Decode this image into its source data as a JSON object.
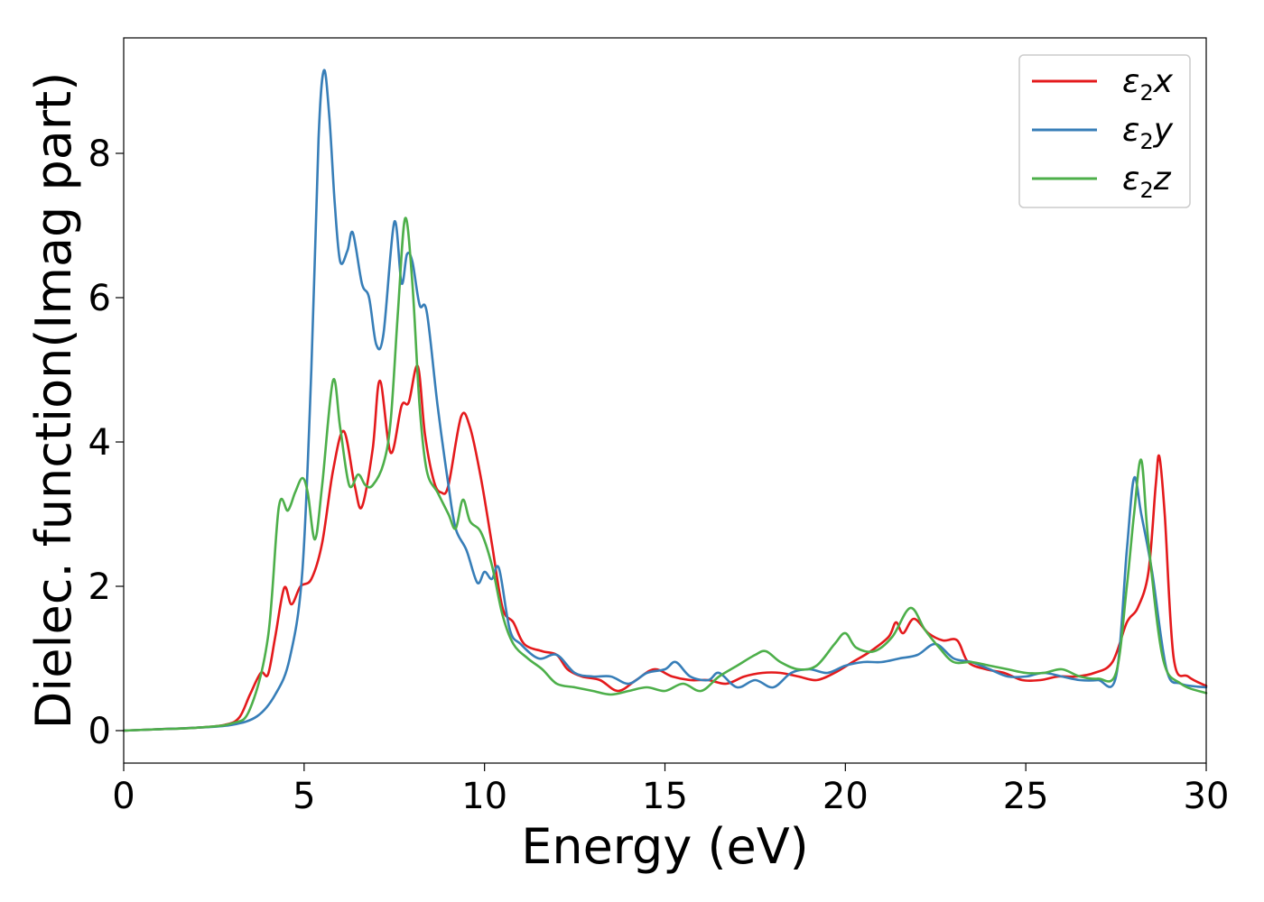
{
  "chart_data": {
    "type": "line",
    "xlabel": "Energy (eV)",
    "ylabel": "Dielec. function(Imag part)",
    "xlim": [
      0,
      30
    ],
    "ylim": [
      -0.45,
      9.6
    ],
    "x_ticks": [
      0,
      5,
      10,
      15,
      20,
      25,
      30
    ],
    "x_tick_labels": [
      "0",
      "5",
      "10",
      "15",
      "20",
      "25",
      "30"
    ],
    "y_ticks": [
      0,
      2,
      4,
      6,
      8
    ],
    "y_tick_labels": [
      "0",
      "2",
      "4",
      "6",
      "8"
    ],
    "grid": false,
    "legend_position": "top-right",
    "series": [
      {
        "name": "ε2x",
        "legend_main": "ε",
        "legend_sub": "2",
        "legend_suffix": "x",
        "color": "#e41a1c",
        "points": [
          [
            0,
            0
          ],
          [
            1,
            0.02
          ],
          [
            2,
            0.04
          ],
          [
            2.8,
            0.08
          ],
          [
            3.2,
            0.18
          ],
          [
            3.5,
            0.5
          ],
          [
            3.8,
            0.8
          ],
          [
            4.0,
            0.78
          ],
          [
            4.2,
            1.3
          ],
          [
            4.45,
            1.98
          ],
          [
            4.65,
            1.75
          ],
          [
            4.9,
            2.0
          ],
          [
            5.2,
            2.1
          ],
          [
            5.5,
            2.6
          ],
          [
            5.8,
            3.6
          ],
          [
            6.1,
            4.15
          ],
          [
            6.4,
            3.4
          ],
          [
            6.6,
            3.1
          ],
          [
            6.9,
            3.9
          ],
          [
            7.1,
            4.85
          ],
          [
            7.4,
            3.85
          ],
          [
            7.7,
            4.5
          ],
          [
            7.9,
            4.55
          ],
          [
            8.15,
            5.05
          ],
          [
            8.35,
            4.1
          ],
          [
            8.6,
            3.45
          ],
          [
            8.8,
            3.3
          ],
          [
            9.0,
            3.4
          ],
          [
            9.35,
            4.35
          ],
          [
            9.6,
            4.2
          ],
          [
            9.9,
            3.5
          ],
          [
            10.2,
            2.6
          ],
          [
            10.5,
            1.7
          ],
          [
            10.8,
            1.5
          ],
          [
            11.1,
            1.2
          ],
          [
            11.6,
            1.1
          ],
          [
            12.0,
            1.05
          ],
          [
            12.3,
            0.85
          ],
          [
            12.7,
            0.75
          ],
          [
            13.2,
            0.7
          ],
          [
            13.7,
            0.55
          ],
          [
            14.2,
            0.7
          ],
          [
            14.7,
            0.85
          ],
          [
            15.2,
            0.75
          ],
          [
            15.7,
            0.7
          ],
          [
            16.2,
            0.7
          ],
          [
            16.7,
            0.65
          ],
          [
            17.2,
            0.75
          ],
          [
            17.7,
            0.8
          ],
          [
            18.2,
            0.8
          ],
          [
            18.7,
            0.75
          ],
          [
            19.2,
            0.7
          ],
          [
            19.7,
            0.8
          ],
          [
            20.2,
            0.95
          ],
          [
            20.7,
            1.1
          ],
          [
            21.2,
            1.3
          ],
          [
            21.4,
            1.5
          ],
          [
            21.6,
            1.35
          ],
          [
            21.9,
            1.55
          ],
          [
            22.3,
            1.35
          ],
          [
            22.7,
            1.25
          ],
          [
            23.1,
            1.25
          ],
          [
            23.4,
            0.95
          ],
          [
            23.9,
            0.85
          ],
          [
            24.4,
            0.8
          ],
          [
            24.9,
            0.7
          ],
          [
            25.4,
            0.7
          ],
          [
            25.9,
            0.75
          ],
          [
            26.4,
            0.75
          ],
          [
            26.9,
            0.8
          ],
          [
            27.4,
            0.95
          ],
          [
            27.8,
            1.5
          ],
          [
            28.1,
            1.7
          ],
          [
            28.4,
            2.2
          ],
          [
            28.6,
            3.4
          ],
          [
            28.7,
            3.8
          ],
          [
            28.85,
            3.0
          ],
          [
            29.1,
            1.0
          ],
          [
            29.5,
            0.75
          ],
          [
            30,
            0.62
          ]
        ]
      },
      {
        "name": "ε2y",
        "legend_main": "ε",
        "legend_sub": "2",
        "legend_suffix": "y",
        "color": "#377eb8",
        "points": [
          [
            0,
            0
          ],
          [
            1,
            0.02
          ],
          [
            2,
            0.04
          ],
          [
            3,
            0.08
          ],
          [
            3.7,
            0.2
          ],
          [
            4.2,
            0.5
          ],
          [
            4.6,
            1.0
          ],
          [
            4.95,
            2.2
          ],
          [
            5.2,
            5.0
          ],
          [
            5.4,
            8.2
          ],
          [
            5.55,
            9.15
          ],
          [
            5.7,
            8.5
          ],
          [
            5.85,
            7.3
          ],
          [
            6.0,
            6.5
          ],
          [
            6.2,
            6.65
          ],
          [
            6.35,
            6.9
          ],
          [
            6.6,
            6.2
          ],
          [
            6.8,
            6.0
          ],
          [
            7.0,
            5.35
          ],
          [
            7.2,
            5.5
          ],
          [
            7.5,
            7.05
          ],
          [
            7.7,
            6.2
          ],
          [
            7.85,
            6.6
          ],
          [
            8.0,
            6.5
          ],
          [
            8.2,
            5.9
          ],
          [
            8.4,
            5.8
          ],
          [
            8.7,
            4.5
          ],
          [
            9.0,
            3.4
          ],
          [
            9.2,
            2.8
          ],
          [
            9.5,
            2.5
          ],
          [
            9.8,
            2.05
          ],
          [
            10.0,
            2.2
          ],
          [
            10.2,
            2.1
          ],
          [
            10.4,
            2.25
          ],
          [
            10.7,
            1.4
          ],
          [
            11.0,
            1.2
          ],
          [
            11.5,
            1.0
          ],
          [
            12.0,
            1.05
          ],
          [
            12.5,
            0.8
          ],
          [
            13.0,
            0.75
          ],
          [
            13.5,
            0.75
          ],
          [
            14.0,
            0.65
          ],
          [
            14.5,
            0.8
          ],
          [
            15.0,
            0.85
          ],
          [
            15.3,
            0.95
          ],
          [
            15.7,
            0.75
          ],
          [
            16.2,
            0.7
          ],
          [
            16.5,
            0.8
          ],
          [
            17.0,
            0.6
          ],
          [
            17.5,
            0.7
          ],
          [
            18.0,
            0.6
          ],
          [
            18.5,
            0.8
          ],
          [
            19.0,
            0.85
          ],
          [
            19.5,
            0.8
          ],
          [
            20.0,
            0.9
          ],
          [
            20.5,
            0.95
          ],
          [
            21.0,
            0.95
          ],
          [
            21.5,
            1.0
          ],
          [
            22.0,
            1.05
          ],
          [
            22.5,
            1.2
          ],
          [
            23.0,
            1.0
          ],
          [
            23.5,
            0.95
          ],
          [
            24.0,
            0.85
          ],
          [
            24.5,
            0.75
          ],
          [
            25.0,
            0.75
          ],
          [
            25.5,
            0.8
          ],
          [
            26.0,
            0.75
          ],
          [
            26.5,
            0.7
          ],
          [
            27.0,
            0.7
          ],
          [
            27.5,
            0.75
          ],
          [
            27.8,
            2.5
          ],
          [
            28.0,
            3.5
          ],
          [
            28.2,
            3.0
          ],
          [
            28.5,
            2.2
          ],
          [
            28.9,
            0.85
          ],
          [
            29.3,
            0.65
          ],
          [
            30,
            0.6
          ]
        ]
      },
      {
        "name": "ε2z",
        "legend_main": "ε",
        "legend_sub": "2",
        "legend_suffix": "z",
        "color": "#4daf4a",
        "points": [
          [
            0,
            0
          ],
          [
            1,
            0.02
          ],
          [
            2,
            0.04
          ],
          [
            3,
            0.1
          ],
          [
            3.5,
            0.3
          ],
          [
            4.0,
            1.3
          ],
          [
            4.3,
            3.1
          ],
          [
            4.55,
            3.05
          ],
          [
            4.75,
            3.3
          ],
          [
            4.95,
            3.5
          ],
          [
            5.1,
            3.3
          ],
          [
            5.3,
            2.65
          ],
          [
            5.5,
            3.4
          ],
          [
            5.8,
            4.85
          ],
          [
            6.0,
            4.2
          ],
          [
            6.25,
            3.4
          ],
          [
            6.5,
            3.55
          ],
          [
            6.7,
            3.4
          ],
          [
            6.9,
            3.4
          ],
          [
            7.2,
            3.7
          ],
          [
            7.4,
            4.3
          ],
          [
            7.6,
            5.8
          ],
          [
            7.8,
            7.1
          ],
          [
            8.0,
            6.2
          ],
          [
            8.2,
            4.5
          ],
          [
            8.4,
            3.6
          ],
          [
            8.7,
            3.3
          ],
          [
            9.0,
            3.0
          ],
          [
            9.2,
            2.8
          ],
          [
            9.4,
            3.2
          ],
          [
            9.6,
            2.9
          ],
          [
            9.9,
            2.75
          ],
          [
            10.2,
            2.3
          ],
          [
            10.5,
            1.6
          ],
          [
            10.8,
            1.2
          ],
          [
            11.2,
            1.0
          ],
          [
            11.6,
            0.85
          ],
          [
            12.0,
            0.65
          ],
          [
            12.5,
            0.6
          ],
          [
            13.0,
            0.55
          ],
          [
            13.5,
            0.5
          ],
          [
            14.0,
            0.55
          ],
          [
            14.5,
            0.6
          ],
          [
            15.0,
            0.55
          ],
          [
            15.5,
            0.65
          ],
          [
            16.0,
            0.55
          ],
          [
            16.5,
            0.75
          ],
          [
            17.0,
            0.9
          ],
          [
            17.5,
            1.05
          ],
          [
            17.8,
            1.1
          ],
          [
            18.2,
            0.95
          ],
          [
            18.7,
            0.85
          ],
          [
            19.2,
            0.9
          ],
          [
            19.7,
            1.2
          ],
          [
            20.0,
            1.35
          ],
          [
            20.3,
            1.15
          ],
          [
            20.8,
            1.1
          ],
          [
            21.3,
            1.3
          ],
          [
            21.8,
            1.7
          ],
          [
            22.2,
            1.4
          ],
          [
            22.6,
            1.15
          ],
          [
            23.0,
            0.95
          ],
          [
            23.5,
            0.95
          ],
          [
            24.0,
            0.9
          ],
          [
            24.5,
            0.85
          ],
          [
            25.0,
            0.8
          ],
          [
            25.5,
            0.8
          ],
          [
            26.0,
            0.85
          ],
          [
            26.5,
            0.75
          ],
          [
            27.0,
            0.72
          ],
          [
            27.5,
            0.8
          ],
          [
            27.8,
            2.0
          ],
          [
            28.0,
            3.0
          ],
          [
            28.2,
            3.75
          ],
          [
            28.4,
            2.6
          ],
          [
            28.8,
            1.0
          ],
          [
            29.3,
            0.65
          ],
          [
            30,
            0.52
          ]
        ]
      }
    ]
  }
}
